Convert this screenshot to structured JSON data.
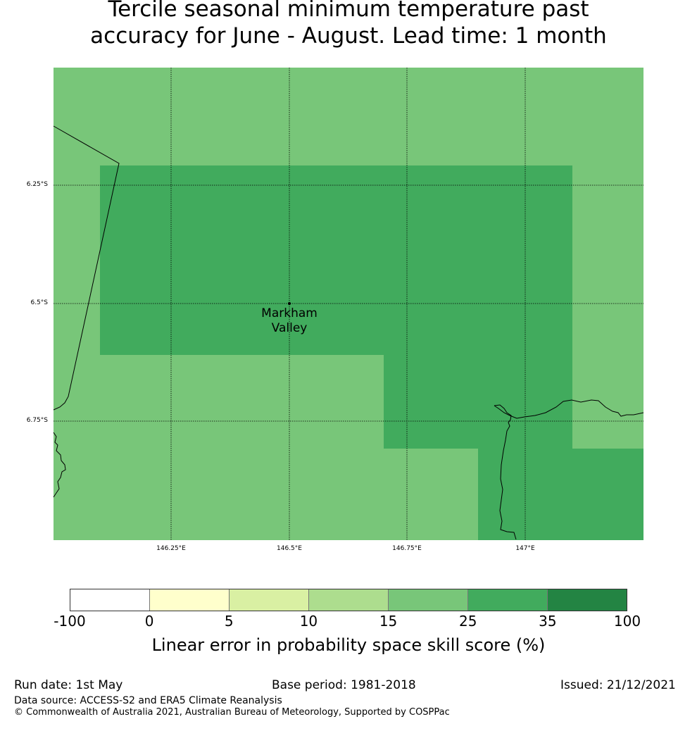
{
  "title_lines": [
    "Tercile seasonal minimum temperature past",
    "accuracy for June - August. Lead time: 1 month"
  ],
  "map": {
    "lat_labels": [
      "6.25°S",
      "6.5°S",
      "6.75°S"
    ],
    "lon_labels": [
      "146.25°E",
      "146.5°E",
      "146.75°E",
      "147°E"
    ],
    "place": {
      "line1": "Markham",
      "line2": "Valley"
    },
    "colors": {
      "skill_25_35": "#78c679",
      "skill_35_100": "#41ab5d"
    }
  },
  "colorbar": {
    "colors": [
      "#ffffff",
      "#ffffcc",
      "#d9f0a3",
      "#addd8e",
      "#78c679",
      "#41ab5d",
      "#238443"
    ],
    "ticks": [
      "-100",
      "0",
      "5",
      "10",
      "15",
      "25",
      "35",
      "100"
    ],
    "label": "Linear error in probability space skill score (%)"
  },
  "footer": {
    "run_date": "Run date: 1st May",
    "base_period": "Base period: 1981-2018",
    "issued": "Issued: 21/12/2021",
    "data_source": "Data source: ACCESS-S2 and ERA5 Climate Reanalysis",
    "copyright": "© Commonwealth of Australia 2021, Australian Bureau of Meteorology, Supported by COSPPac"
  }
}
